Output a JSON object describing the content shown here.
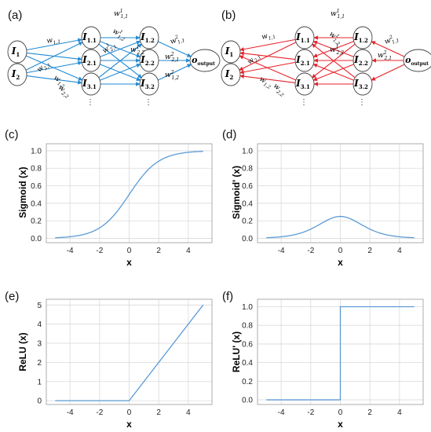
{
  "accent_colors": {
    "forward": "#1f8ad6",
    "backward": "#e8222a",
    "curve": "#5b9bd5"
  },
  "networks": [
    {
      "label": "(a)",
      "edge_color": "#1f8ad6",
      "direction": "forward",
      "inputs": [
        [
          "I",
          "1"
        ],
        [
          "I",
          "2"
        ]
      ],
      "layer1": [
        [
          "I",
          "1.1"
        ],
        [
          "I",
          "2.1"
        ],
        [
          "I",
          "3.1"
        ]
      ],
      "layer2": [
        [
          "I",
          "1.2"
        ],
        [
          "I",
          "2.2"
        ],
        [
          "I",
          "3.2"
        ]
      ],
      "output": [
        "o",
        "output"
      ],
      "weights": [
        {
          "w": "w",
          "sub": "1,1",
          "sup": ""
        },
        {
          "w": "w",
          "sub": "2,1",
          "sup": ""
        },
        {
          "w": "w",
          "sub": "1,2",
          "sup": ""
        },
        {
          "w": "w",
          "sub": "2,2",
          "sup": ""
        },
        {
          "w": "w",
          "sub": "1,1",
          "sup": "1"
        },
        {
          "w": "w",
          "sub": "1,2",
          "sup": "1"
        },
        {
          "w": "w",
          "sub": "2,1",
          "sup": "1"
        },
        {
          "w": "w",
          "sub": "2,2",
          "sup": "1"
        },
        {
          "w": "w",
          "sub": "1,1",
          "sup": "2"
        },
        {
          "w": "w",
          "sub": "2,1",
          "sup": "2"
        },
        {
          "w": "w",
          "sub": "1,2",
          "sup": "2"
        }
      ],
      "ellipsis": "⋮"
    },
    {
      "label": "(b)",
      "edge_color": "#e8222a",
      "direction": "backward",
      "inputs": [
        [
          "I",
          "1"
        ],
        [
          "I",
          "2"
        ]
      ],
      "layer1": [
        [
          "I",
          "1.1"
        ],
        [
          "I",
          "2.1"
        ],
        [
          "I",
          "3.1"
        ]
      ],
      "layer2": [
        [
          "I",
          "1.2"
        ],
        [
          "I",
          "2.2"
        ],
        [
          "I",
          "3.2"
        ]
      ],
      "output": [
        "o",
        "output"
      ],
      "weights": [
        {
          "w": "w",
          "sub": "1,1",
          "sup": ""
        },
        {
          "w": "w",
          "sub": "2,1",
          "sup": ""
        },
        {
          "w": "w",
          "sub": "1,2",
          "sup": ""
        },
        {
          "w": "w",
          "sub": "2,2",
          "sup": ""
        },
        {
          "w": "w",
          "sub": "1,1",
          "sup": "1"
        },
        {
          "w": "w",
          "sub": "1,2",
          "sup": "1"
        },
        {
          "w": "w",
          "sub": "2,2",
          "sup": "1"
        },
        {
          "w": "w",
          "sub": "1,1",
          "sup": "2"
        },
        {
          "w": "w",
          "sub": "2,1",
          "sup": "2"
        }
      ],
      "ellipsis": "⋮"
    }
  ],
  "chart_data": [
    {
      "panel": "(c)",
      "type": "line",
      "function": "sigmoid",
      "xlabel": "x",
      "ylabel": "Sigmoid (x)",
      "xlim": [
        -5.6,
        5.6
      ],
      "ylim": [
        -0.05,
        1.08
      ],
      "xticks": [
        -4,
        -2,
        0,
        2,
        4
      ],
      "yticks": [
        0.0,
        0.2,
        0.4,
        0.6,
        0.8,
        1.0
      ],
      "xtick_labels": [
        "-4",
        "-2",
        "0",
        "2",
        "4"
      ],
      "ytick_labels": [
        "0.0",
        "0.2",
        "0.4",
        "0.6",
        "0.8",
        "1.0"
      ],
      "grid": true,
      "color": "#5b9bd5",
      "x": [
        -5,
        -4,
        -3,
        -2,
        -1,
        0,
        1,
        2,
        3,
        4,
        5
      ],
      "y": [
        0.007,
        0.018,
        0.047,
        0.119,
        0.269,
        0.5,
        0.731,
        0.881,
        0.953,
        0.982,
        0.993
      ]
    },
    {
      "panel": "(d)",
      "type": "line",
      "function": "sigmoid_derivative",
      "xlabel": "x",
      "ylabel": "Sigmoid' (x)",
      "xlim": [
        -5.6,
        5.6
      ],
      "ylim": [
        -0.05,
        1.08
      ],
      "xticks": [
        -4,
        -2,
        0,
        2,
        4
      ],
      "yticks": [
        0.0,
        0.2,
        0.4,
        0.6,
        0.8,
        1.0
      ],
      "xtick_labels": [
        "-4",
        "-2",
        "0",
        "2",
        "4"
      ],
      "ytick_labels": [
        "0.0",
        "0.2",
        "0.4",
        "0.6",
        "0.8",
        "1.0"
      ],
      "grid": true,
      "color": "#5b9bd5",
      "x": [
        -5,
        -4,
        -3,
        -2,
        -1,
        0,
        1,
        2,
        3,
        4,
        5
      ],
      "y": [
        0.007,
        0.018,
        0.045,
        0.105,
        0.197,
        0.25,
        0.197,
        0.105,
        0.045,
        0.018,
        0.007
      ]
    },
    {
      "panel": "(e)",
      "type": "line",
      "function": "relu",
      "xlabel": "x",
      "ylabel": "ReLU (x)",
      "xlim": [
        -5.6,
        5.6
      ],
      "ylim": [
        -0.2,
        5.3
      ],
      "xticks": [
        -4,
        -2,
        0,
        2,
        4
      ],
      "yticks": [
        0,
        1,
        2,
        3,
        4,
        5
      ],
      "xtick_labels": [
        "-4",
        "-2",
        "0",
        "2",
        "4"
      ],
      "ytick_labels": [
        "0",
        "1",
        "2",
        "3",
        "4",
        "5"
      ],
      "grid": true,
      "color": "#5b9bd5",
      "x": [
        -5,
        0,
        5
      ],
      "y": [
        0,
        0,
        5
      ]
    },
    {
      "panel": "(f)",
      "type": "line",
      "function": "relu_derivative",
      "xlabel": "x",
      "ylabel": "ReLU' (x)",
      "xlim": [
        -5.6,
        5.6
      ],
      "ylim": [
        -0.05,
        1.08
      ],
      "xticks": [
        -4,
        -2,
        0,
        2,
        4
      ],
      "yticks": [
        0.0,
        0.2,
        0.4,
        0.6,
        0.8,
        1.0
      ],
      "xtick_labels": [
        "-4",
        "-2",
        "0",
        "2",
        "4"
      ],
      "ytick_labels": [
        "0.0",
        "0.2",
        "0.4",
        "0.6",
        "0.8",
        "1.0"
      ],
      "grid": true,
      "color": "#5b9bd5",
      "x": [
        -5,
        0,
        0,
        5
      ],
      "y": [
        0,
        0,
        1,
        1
      ]
    }
  ]
}
